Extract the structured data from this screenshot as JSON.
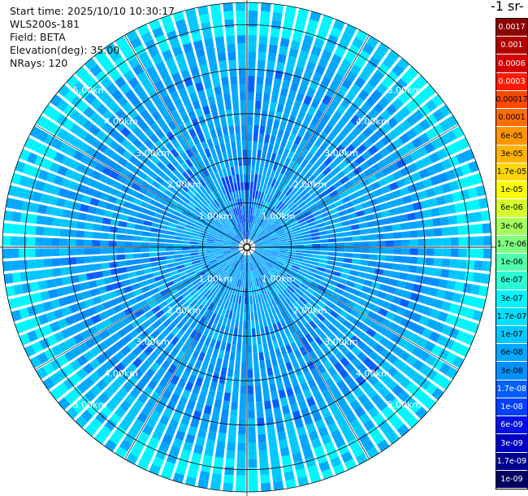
{
  "info": {
    "start_time": "Start time: 2025/10/10 10:30:17",
    "instrument": "WLS200s-181",
    "field": "Field: BETA",
    "elevation": "Elevation(deg): 35.00",
    "nrays": "NRays: 120"
  },
  "colorbar": {
    "units_label": "-1 sr-",
    "levels": [
      {
        "label": "0.0017",
        "color": "#8b0000"
      },
      {
        "label": "0.001",
        "color": "#b00000"
      },
      {
        "label": "0.0006",
        "color": "#d40000"
      },
      {
        "label": "0.0003",
        "color": "#ff1a00"
      },
      {
        "label": "0.00017",
        "color": "#ff4a00"
      },
      {
        "label": "0.0001",
        "color": "#ff6e00"
      },
      {
        "label": "6e-05",
        "color": "#ff9500"
      },
      {
        "label": "3e-05",
        "color": "#ffb400"
      },
      {
        "label": "1.7e-05",
        "color": "#ffd500"
      },
      {
        "label": "1e-05",
        "color": "#ffff00"
      },
      {
        "label": "6e-06",
        "color": "#d4ff2a"
      },
      {
        "label": "3e-06",
        "color": "#a4ff5a"
      },
      {
        "label": "1.7e-06",
        "color": "#7fff80"
      },
      {
        "label": "1e-06",
        "color": "#50ffab"
      },
      {
        "label": "6e-07",
        "color": "#2affd4"
      },
      {
        "label": "3e-07",
        "color": "#00f5ff"
      },
      {
        "label": "1.7e-07",
        "color": "#00e0ff"
      },
      {
        "label": "1e-07",
        "color": "#00c8ff"
      },
      {
        "label": "6e-08",
        "color": "#00a8ff"
      },
      {
        "label": "3e-08",
        "color": "#0090ff"
      },
      {
        "label": "1.7e-08",
        "color": "#0060ff"
      },
      {
        "label": "1e-08",
        "color": "#0040ff"
      },
      {
        "label": "6e-09",
        "color": "#0010e0"
      },
      {
        "label": "3e-09",
        "color": "#0000c0"
      },
      {
        "label": "1.7e-09",
        "color": "#00008f"
      },
      {
        "label": "1e-09",
        "color": "#000060"
      }
    ]
  },
  "chart_data": {
    "type": "heatmap",
    "projection": "polar",
    "rays": 120,
    "max_range_km": 5.5,
    "range_rings_km": [
      1.0,
      2.0,
      3.0,
      4.0,
      5.0
    ],
    "ring_label_text": [
      "1.00km",
      "2.00km",
      "3.00km",
      "4.00km",
      "5.00km"
    ],
    "ring_label_azimuths_deg": [
      45,
      135,
      225,
      315
    ],
    "radial_spokes_deg": [
      0,
      30,
      60,
      90,
      120,
      150,
      180,
      210,
      240,
      270,
      300,
      330
    ],
    "dominant_levels": [
      "6e-08",
      "3e-08",
      "1.7e-08",
      "1e-07",
      "3e-07"
    ],
    "far_ring_level": "3e-07",
    "near_feature_level": "1e-08"
  }
}
